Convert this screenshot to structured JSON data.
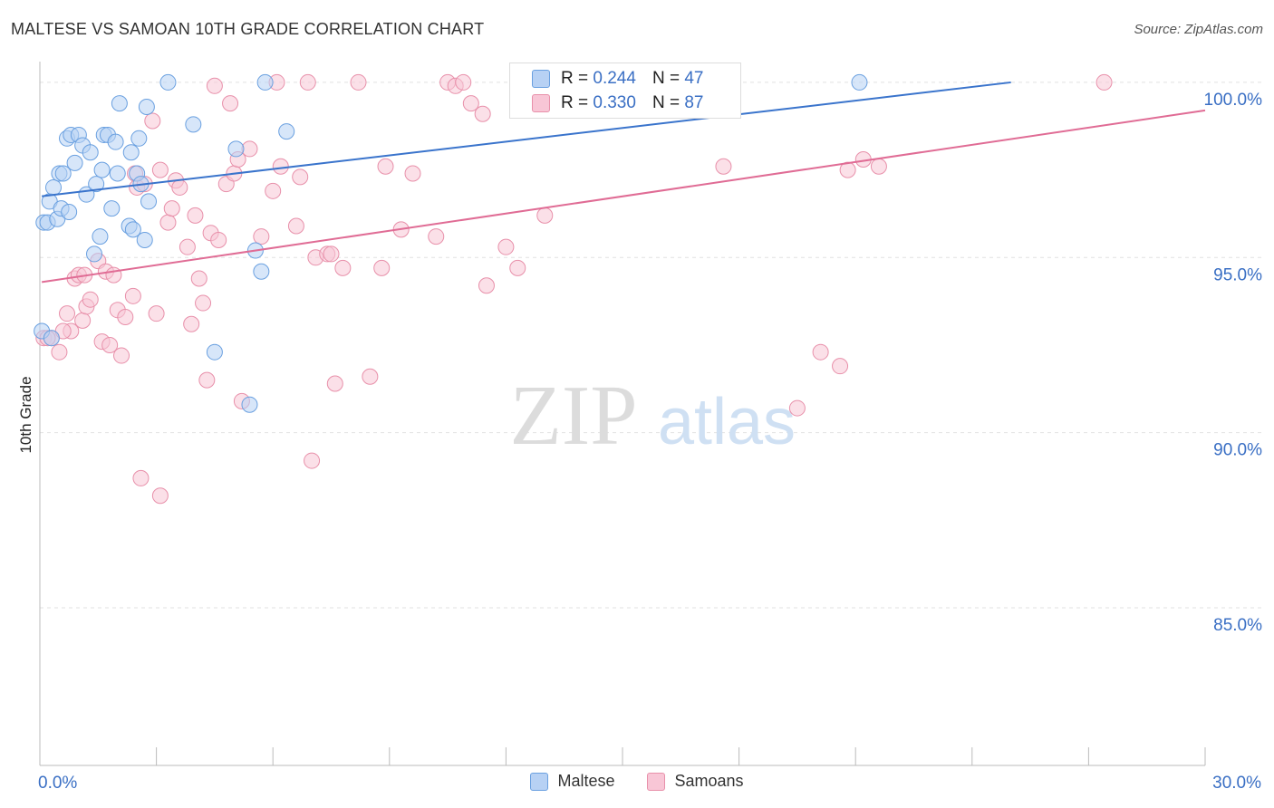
{
  "title": "MALTESE VS SAMOAN 10TH GRADE CORRELATION CHART",
  "source": "Source: ZipAtlas.com",
  "watermark": {
    "zip": "ZIP",
    "atlas": "atlas"
  },
  "stats": [
    {
      "r_label": "R =",
      "r_value": "0.244",
      "n_label": "N =",
      "n_value": "47",
      "color": "#6aa0e0",
      "fill": "#b7d1f4"
    },
    {
      "r_label": "R =",
      "r_value": "0.330",
      "n_label": "N =",
      "n_value": "87",
      "color": "#e890aa",
      "fill": "#f8c6d6"
    }
  ],
  "legend": [
    {
      "label": "Maltese",
      "color": "#b7d1f4",
      "border": "#6aa0e0"
    },
    {
      "label": "Samoans",
      "color": "#f8c6d6",
      "border": "#e890aa"
    }
  ],
  "chart_data": {
    "type": "scatter",
    "title": "MALTESE VS SAMOAN 10TH GRADE CORRELATION CHART",
    "xlabel": "",
    "ylabel": "10th Grade",
    "xlim": [
      0,
      30
    ],
    "ylim": [
      80.5,
      100.8
    ],
    "x_tick_labels": [
      {
        "value": 0,
        "label": "0.0%"
      },
      {
        "value": 30,
        "label": "30.0%"
      }
    ],
    "y_ticks": [
      {
        "value": 100,
        "label": "100.0%"
      },
      {
        "value": 95,
        "label": "95.0%"
      },
      {
        "value": 90,
        "label": "90.0%"
      },
      {
        "value": 85,
        "label": "85.0%"
      }
    ],
    "grid": true,
    "series": [
      {
        "name": "Maltese",
        "color": "#3a74cc",
        "fill": "#b7d1f4",
        "stroke": "#6aa0e0",
        "trend": [
          [
            0.05,
            96.75
          ],
          [
            25.0,
            100.0
          ]
        ],
        "points": [
          [
            0.1,
            96.0
          ],
          [
            0.2,
            96.0
          ],
          [
            0.25,
            96.6
          ],
          [
            0.35,
            97.0
          ],
          [
            0.45,
            96.1
          ],
          [
            0.5,
            97.4
          ],
          [
            0.55,
            96.4
          ],
          [
            0.6,
            97.4
          ],
          [
            0.7,
            98.4
          ],
          [
            0.75,
            96.3
          ],
          [
            0.8,
            98.5
          ],
          [
            0.9,
            97.7
          ],
          [
            1.0,
            98.5
          ],
          [
            1.1,
            98.2
          ],
          [
            1.2,
            96.8
          ],
          [
            1.3,
            98.0
          ],
          [
            1.4,
            95.1
          ],
          [
            1.45,
            97.1
          ],
          [
            1.55,
            95.6
          ],
          [
            1.6,
            97.5
          ],
          [
            1.65,
            98.5
          ],
          [
            1.75,
            98.5
          ],
          [
            1.85,
            96.4
          ],
          [
            1.95,
            98.3
          ],
          [
            2.0,
            97.4
          ],
          [
            2.05,
            99.4
          ],
          [
            2.3,
            95.9
          ],
          [
            2.35,
            98.0
          ],
          [
            2.4,
            95.8
          ],
          [
            2.5,
            97.4
          ],
          [
            2.55,
            98.4
          ],
          [
            2.6,
            97.1
          ],
          [
            2.7,
            95.5
          ],
          [
            2.75,
            99.3
          ],
          [
            2.8,
            96.6
          ],
          [
            3.3,
            100.0
          ],
          [
            3.95,
            98.8
          ],
          [
            4.5,
            92.3
          ],
          [
            5.05,
            98.1
          ],
          [
            5.4,
            90.8
          ],
          [
            5.55,
            95.2
          ],
          [
            5.7,
            94.6
          ],
          [
            5.8,
            100.0
          ],
          [
            6.35,
            98.6
          ],
          [
            0.05,
            92.9
          ],
          [
            0.3,
            92.7
          ],
          [
            21.1,
            100.0
          ]
        ]
      },
      {
        "name": "Samoans",
        "color": "#e06c95",
        "fill": "#f8c6d6",
        "stroke": "#e890aa",
        "trend": [
          [
            0.05,
            94.3
          ],
          [
            30.0,
            99.2
          ]
        ],
        "points": [
          [
            0.1,
            92.7
          ],
          [
            0.3,
            92.7
          ],
          [
            0.5,
            92.3
          ],
          [
            0.7,
            93.4
          ],
          [
            0.8,
            92.9
          ],
          [
            0.9,
            94.4
          ],
          [
            1.0,
            94.5
          ],
          [
            1.1,
            93.2
          ],
          [
            1.2,
            93.6
          ],
          [
            1.3,
            93.8
          ],
          [
            1.5,
            94.9
          ],
          [
            1.6,
            92.6
          ],
          [
            1.7,
            94.6
          ],
          [
            1.8,
            92.5
          ],
          [
            1.9,
            94.5
          ],
          [
            2.0,
            93.5
          ],
          [
            2.1,
            92.2
          ],
          [
            2.2,
            93.3
          ],
          [
            2.4,
            93.9
          ],
          [
            2.5,
            97.0
          ],
          [
            2.7,
            97.1
          ],
          [
            2.9,
            98.9
          ],
          [
            3.0,
            93.4
          ],
          [
            3.1,
            97.5
          ],
          [
            3.3,
            96.0
          ],
          [
            3.4,
            96.4
          ],
          [
            3.5,
            97.2
          ],
          [
            3.6,
            97.0
          ],
          [
            3.8,
            95.3
          ],
          [
            3.9,
            93.1
          ],
          [
            4.0,
            96.2
          ],
          [
            4.1,
            94.4
          ],
          [
            4.2,
            93.7
          ],
          [
            4.3,
            91.5
          ],
          [
            4.4,
            95.7
          ],
          [
            4.5,
            99.9
          ],
          [
            4.6,
            95.5
          ],
          [
            4.8,
            97.1
          ],
          [
            4.9,
            99.4
          ],
          [
            5.0,
            97.4
          ],
          [
            5.1,
            97.8
          ],
          [
            5.2,
            90.9
          ],
          [
            5.4,
            98.1
          ],
          [
            5.7,
            95.6
          ],
          [
            6.0,
            96.9
          ],
          [
            6.1,
            100.0
          ],
          [
            6.2,
            97.6
          ],
          [
            6.6,
            95.9
          ],
          [
            6.7,
            97.3
          ],
          [
            6.9,
            100.0
          ],
          [
            7.0,
            89.2
          ],
          [
            7.1,
            95.0
          ],
          [
            7.4,
            95.1
          ],
          [
            7.6,
            91.4
          ],
          [
            7.8,
            94.7
          ],
          [
            8.2,
            100.0
          ],
          [
            8.5,
            91.6
          ],
          [
            8.8,
            94.7
          ],
          [
            8.9,
            97.6
          ],
          [
            9.3,
            95.8
          ],
          [
            9.6,
            97.4
          ],
          [
            10.2,
            95.6
          ],
          [
            10.5,
            100.0
          ],
          [
            10.7,
            99.9
          ],
          [
            10.9,
            100.0
          ],
          [
            11.1,
            99.4
          ],
          [
            11.4,
            99.1
          ],
          [
            11.5,
            94.2
          ],
          [
            12.0,
            95.3
          ],
          [
            12.3,
            94.7
          ],
          [
            13.0,
            96.2
          ],
          [
            14.2,
            100.0
          ],
          [
            17.6,
            97.6
          ],
          [
            19.5,
            90.7
          ],
          [
            20.1,
            92.3
          ],
          [
            20.6,
            91.9
          ],
          [
            20.8,
            97.5
          ],
          [
            21.2,
            97.8
          ],
          [
            21.6,
            97.6
          ],
          [
            27.4,
            100.0
          ],
          [
            2.6,
            88.7
          ],
          [
            3.1,
            88.2
          ],
          [
            0.2,
            92.7
          ],
          [
            0.6,
            92.9
          ],
          [
            1.15,
            94.5
          ],
          [
            2.45,
            97.4
          ],
          [
            7.5,
            95.1
          ]
        ]
      }
    ]
  }
}
